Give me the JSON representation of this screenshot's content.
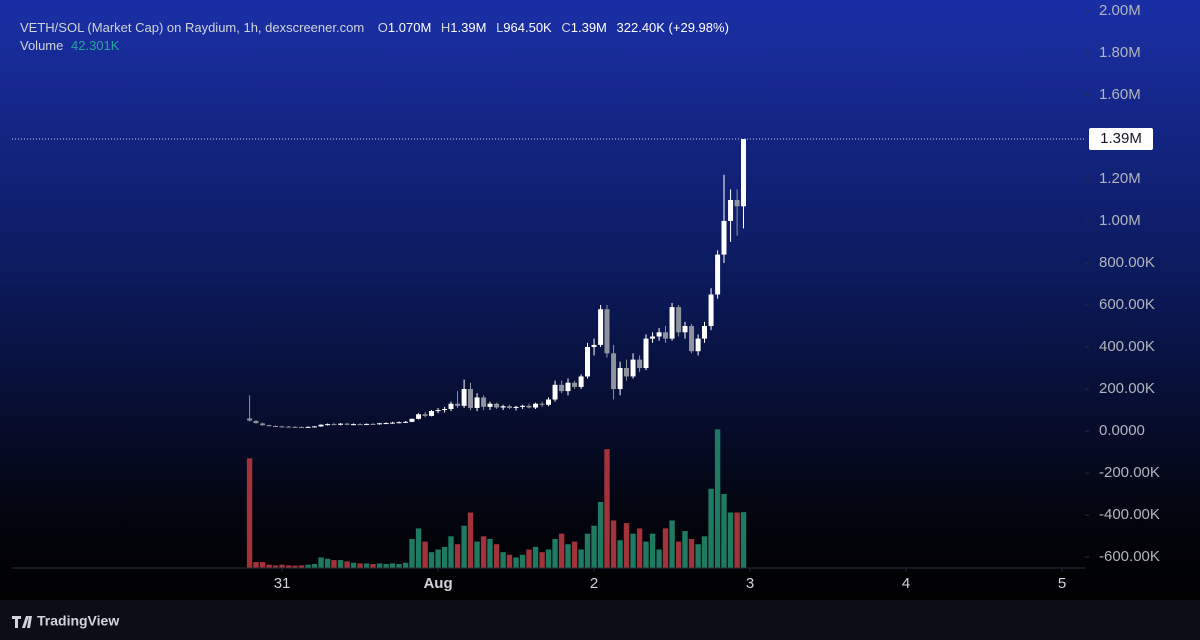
{
  "chart_data": {
    "type": "candlestick",
    "title": "VETH/SOL (Market Cap) on Raydium, 1h, dexscreener.com",
    "ohlc_legend": [
      {
        "label": "O",
        "value": "1.070M"
      },
      {
        "label": "H",
        "value": "1.39M"
      },
      {
        "label": "L",
        "value": "964.50K"
      },
      {
        "label": "C",
        "value": "1.39M"
      }
    ],
    "change": "322.40K (+29.98%)",
    "volume_label": "Volume",
    "volume_value": "42.301K",
    "last_price": {
      "value": 1390000,
      "label": "1.39M"
    },
    "footer": "TradingView",
    "up_color": "#ffffff",
    "down_color": "#8f939e",
    "volume_up_color": "#1f7a62",
    "volume_down_color": "#a3333a",
    "xlim": [
      -1.731,
      5.147
    ],
    "xticks": [
      {
        "value": 0,
        "label": "31"
      },
      {
        "value": 1,
        "label": "Aug"
      },
      {
        "value": 2,
        "label": "2"
      },
      {
        "value": 3,
        "label": "3"
      },
      {
        "value": 4,
        "label": "4"
      },
      {
        "value": 5,
        "label": "5"
      }
    ],
    "ylim": [
      -652000,
      2052000
    ],
    "yticks": [
      {
        "value": 2000000,
        "label": "2.00M"
      },
      {
        "value": 1800000,
        "label": "1.80M"
      },
      {
        "value": 1600000,
        "label": "1.60M"
      },
      {
        "value": 1200000,
        "label": "1.20M"
      },
      {
        "value": 1000000,
        "label": "1.00M"
      },
      {
        "value": 800000,
        "label": "800.00K"
      },
      {
        "value": 600000,
        "label": "600.00K"
      },
      {
        "value": 400000,
        "label": "400.00K"
      },
      {
        "value": 200000,
        "label": "200.00K"
      },
      {
        "value": 0,
        "label": "0.0000"
      },
      {
        "value": -200000,
        "label": "-200.00K"
      },
      {
        "value": -400000,
        "label": "-400.00K"
      },
      {
        "value": -600000,
        "label": "-600.00K"
      }
    ],
    "y2lim": [
      0,
      430000
    ],
    "x": [
      -0.208,
      -0.167,
      -0.125,
      -0.083,
      -0.042,
      0,
      0.042,
      0.083,
      0.125,
      0.167,
      0.208,
      0.25,
      0.292,
      0.333,
      0.375,
      0.417,
      0.458,
      0.5,
      0.542,
      0.583,
      0.625,
      0.667,
      0.708,
      0.75,
      0.792,
      0.833,
      0.875,
      0.917,
      0.958,
      1,
      1.042,
      1.083,
      1.125,
      1.167,
      1.208,
      1.25,
      1.292,
      1.333,
      1.375,
      1.417,
      1.458,
      1.5,
      1.542,
      1.583,
      1.625,
      1.667,
      1.708,
      1.75,
      1.792,
      1.833,
      1.875,
      1.917,
      1.958,
      2,
      2.042,
      2.083,
      2.125,
      2.167,
      2.208,
      2.25,
      2.292,
      2.333,
      2.375,
      2.417,
      2.458,
      2.5,
      2.542,
      2.583,
      2.625,
      2.667,
      2.708,
      2.75,
      2.792,
      2.833,
      2.875,
      2.917,
      2.958
    ],
    "open": [
      60000,
      48000,
      36000,
      28000,
      24000,
      22000,
      21000,
      20000,
      19000,
      18000,
      20000,
      22000,
      30000,
      33000,
      30000,
      35000,
      30000,
      33000,
      31000,
      34000,
      32000,
      37000,
      38000,
      40000,
      42000,
      44000,
      58000,
      80000,
      72000,
      95000,
      100000,
      105000,
      130000,
      120000,
      200000,
      110000,
      160000,
      115000,
      130000,
      112000,
      118000,
      110000,
      115000,
      120000,
      112000,
      130000,
      125000,
      150000,
      220000,
      190000,
      230000,
      210000,
      260000,
      400000,
      410000,
      580000,
      370000,
      200000,
      300000,
      260000,
      340000,
      300000,
      440000,
      450000,
      470000,
      440000,
      590000,
      470000,
      500000,
      380000,
      440000,
      500000,
      650000,
      840000,
      1000000,
      1100000,
      1070000
    ],
    "high": [
      170000,
      52000,
      40000,
      30000,
      26000,
      25000,
      24000,
      23000,
      22000,
      22000,
      24000,
      32000,
      36000,
      40000,
      38000,
      39000,
      36000,
      37000,
      36000,
      38000,
      39000,
      41000,
      44000,
      46000,
      48000,
      60000,
      85000,
      90000,
      100000,
      110000,
      115000,
      140000,
      190000,
      245000,
      230000,
      180000,
      170000,
      140000,
      135000,
      125000,
      125000,
      120000,
      125000,
      130000,
      135000,
      140000,
      160000,
      240000,
      240000,
      250000,
      240000,
      270000,
      420000,
      440000,
      600000,
      600000,
      410000,
      330000,
      340000,
      370000,
      360000,
      460000,
      470000,
      490000,
      500000,
      610000,
      600000,
      520000,
      510000,
      460000,
      520000,
      680000,
      860000,
      1220000,
      1150000,
      1150000,
      1390000
    ],
    "low": [
      45000,
      35000,
      25000,
      22000,
      20000,
      18000,
      17000,
      16000,
      16000,
      15000,
      17000,
      20000,
      26000,
      28000,
      27000,
      28000,
      27000,
      29000,
      28000,
      30000,
      30000,
      33000,
      35000,
      37000,
      38000,
      42000,
      55000,
      65000,
      70000,
      85000,
      88000,
      95000,
      110000,
      110000,
      100000,
      95000,
      100000,
      100000,
      105000,
      100000,
      105000,
      98000,
      105000,
      108000,
      105000,
      115000,
      118000,
      140000,
      180000,
      170000,
      200000,
      200000,
      250000,
      360000,
      400000,
      350000,
      150000,
      170000,
      240000,
      250000,
      280000,
      290000,
      420000,
      430000,
      420000,
      430000,
      450000,
      440000,
      370000,
      360000,
      420000,
      480000,
      630000,
      800000,
      900000,
      930000,
      964500
    ],
    "close": [
      50000,
      38000,
      28000,
      24000,
      22000,
      21000,
      20000,
      19000,
      18000,
      20000,
      22000,
      30000,
      33000,
      30000,
      35000,
      30000,
      33000,
      31000,
      34000,
      32000,
      37000,
      38000,
      40000,
      42000,
      44000,
      58000,
      80000,
      72000,
      95000,
      100000,
      105000,
      130000,
      120000,
      200000,
      110000,
      160000,
      115000,
      130000,
      112000,
      118000,
      110000,
      115000,
      120000,
      112000,
      130000,
      125000,
      150000,
      220000,
      190000,
      230000,
      210000,
      260000,
      400000,
      410000,
      580000,
      370000,
      200000,
      300000,
      260000,
      340000,
      300000,
      440000,
      450000,
      470000,
      440000,
      590000,
      470000,
      500000,
      380000,
      440000,
      500000,
      650000,
      840000,
      1000000,
      1100000,
      1070000,
      1390000
    ],
    "volume": [
      83000,
      4500,
      4500,
      2500,
      2000,
      2500,
      2000,
      1800,
      2000,
      2500,
      3000,
      8000,
      7000,
      6000,
      6000,
      5000,
      4000,
      3500,
      3500,
      3000,
      3500,
      3000,
      3500,
      3000,
      4000,
      22000,
      30000,
      20000,
      12000,
      14000,
      16000,
      24000,
      18000,
      32000,
      42000,
      20000,
      24000,
      22000,
      18000,
      12000,
      10000,
      8000,
      10000,
      14000,
      16000,
      12000,
      14000,
      22000,
      26000,
      18000,
      20000,
      14000,
      26000,
      32000,
      50000,
      90000,
      36000,
      21000,
      34000,
      26000,
      30000,
      20000,
      26000,
      14000,
      30000,
      36000,
      20000,
      28000,
      22000,
      18000,
      24000,
      60000,
      105000,
      56000,
      42000,
      42000,
      42301
    ]
  }
}
